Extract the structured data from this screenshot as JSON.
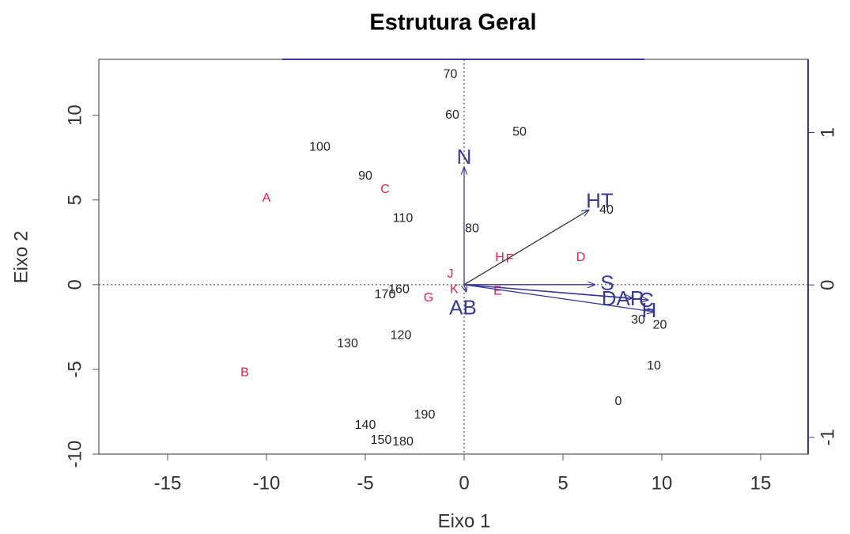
{
  "chart_data": {
    "type": "biplot",
    "title": "Estrutura Geral",
    "xlabel": "Eixo 1",
    "ylabel": "Eixo 2",
    "xlim": [
      -18.48,
      17.4
    ],
    "ylim": [
      -10,
      13.3
    ],
    "xticks": [
      -15,
      -10,
      -5,
      0,
      5,
      10,
      15
    ],
    "yticks": [
      -10,
      -5,
      0,
      5,
      10
    ],
    "y2lim": [
      -1.11,
      1.48
    ],
    "y2ticks": [
      -1,
      0,
      1
    ],
    "sites": {
      "color": "#222222",
      "labels": [
        "70",
        "60",
        "50",
        "100",
        "90",
        "110",
        "80",
        "40",
        "160",
        "170",
        "120",
        "130",
        "30",
        "20",
        "10",
        "0",
        "190",
        "140",
        "150",
        "180"
      ],
      "x": [
        -0.7,
        -0.6,
        2.8,
        -7.3,
        -5.0,
        -3.1,
        0.4,
        7.2,
        -3.3,
        -4.0,
        -3.2,
        -5.9,
        8.8,
        9.9,
        9.6,
        7.8,
        -2.0,
        -5.0,
        -4.2,
        -3.1
      ],
      "y": [
        12.4,
        10.0,
        9.0,
        8.1,
        6.4,
        3.9,
        3.3,
        4.4,
        -0.3,
        -0.6,
        -3.0,
        -3.5,
        -2.1,
        -2.4,
        -4.8,
        -6.9,
        -7.7,
        -8.3,
        -9.2,
        -9.3
      ]
    },
    "species": {
      "color": "#e8204c",
      "labels": [
        "A",
        "B",
        "C",
        "D",
        "E",
        "F",
        "G",
        "H",
        "J",
        "K"
      ],
      "x": [
        -10.0,
        -11.1,
        -4.0,
        5.9,
        1.7,
        2.3,
        -1.8,
        1.8,
        -0.7,
        -0.5
      ],
      "y": [
        5.1,
        -5.2,
        5.6,
        1.6,
        -0.4,
        1.5,
        -0.8,
        1.6,
        0.6,
        -0.3
      ]
    },
    "variables": {
      "color": "#3a3a96",
      "labels": [
        "N",
        "HT",
        "S",
        "DAP",
        "C",
        "H",
        "AB"
      ],
      "x": [
        0,
        6.3,
        6.6,
        8.5,
        9.3,
        9.6,
        0.1
      ],
      "y": [
        6.9,
        4.4,
        0,
        -0.8,
        -0.9,
        -1.6,
        -0.4
      ]
    }
  }
}
